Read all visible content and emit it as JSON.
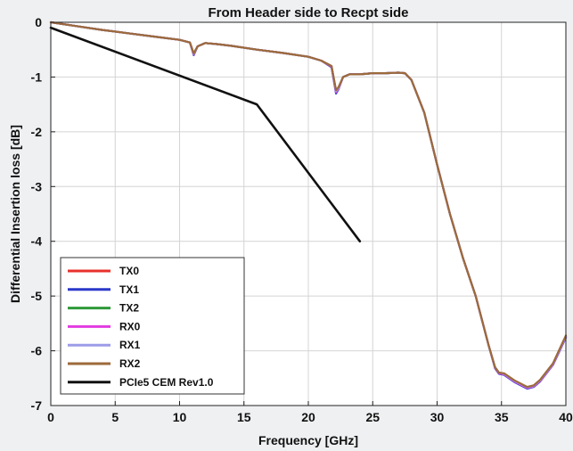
{
  "chart_data": {
    "type": "line",
    "title": "From Header side to Recpt side",
    "xlabel": "Frequency [GHz]",
    "ylabel": "Differential Insertion loss [dB]",
    "xlim": [
      0,
      40
    ],
    "ylim": [
      -7,
      0
    ],
    "xticks": [
      0,
      5,
      10,
      15,
      20,
      25,
      30,
      35,
      40
    ],
    "yticks": [
      0,
      -1,
      -2,
      -3,
      -4,
      -5,
      -6,
      -7
    ],
    "grid": true,
    "legend_position": "bottom-left",
    "series": [
      {
        "name": "TX0",
        "color": "#e8312b",
        "width": 2.2,
        "x": [
          0,
          2,
          4,
          6,
          8,
          10,
          10.8,
          11.1,
          11.4,
          12,
          13,
          14,
          16,
          18,
          20,
          21,
          21.8,
          22.15,
          22.35,
          22.7,
          23.2,
          24,
          25,
          26,
          27,
          27.5,
          28,
          29,
          30,
          31,
          32,
          33,
          34,
          34.5,
          34.8,
          35.2,
          36,
          37,
          37.5,
          38,
          39,
          40
        ],
        "y": [
          0,
          -0.07,
          -0.14,
          -0.2,
          -0.26,
          -0.32,
          -0.37,
          -0.58,
          -0.44,
          -0.38,
          -0.4,
          -0.43,
          -0.5,
          -0.56,
          -0.63,
          -0.7,
          -0.8,
          -1.27,
          -1.2,
          -1.0,
          -0.95,
          -0.95,
          -0.93,
          -0.93,
          -0.92,
          -0.93,
          -1.05,
          -1.65,
          -2.6,
          -3.5,
          -4.3,
          -5.0,
          -5.9,
          -6.3,
          -6.4,
          -6.42,
          -6.55,
          -6.68,
          -6.65,
          -6.55,
          -6.25,
          -5.75
        ]
      },
      {
        "name": "TX1",
        "color": "#2a39c9",
        "width": 2.2,
        "x": [
          0,
          2,
          4,
          6,
          8,
          10,
          10.8,
          11.1,
          11.4,
          12,
          13,
          14,
          16,
          18,
          20,
          21,
          21.8,
          22.15,
          22.35,
          22.7,
          23.2,
          24,
          25,
          26,
          27,
          27.5,
          28,
          29,
          30,
          31,
          32,
          33,
          34,
          34.5,
          34.8,
          35.2,
          36,
          37,
          37.5,
          38,
          39,
          40
        ],
        "y": [
          0,
          -0.07,
          -0.14,
          -0.2,
          -0.26,
          -0.32,
          -0.37,
          -0.6,
          -0.44,
          -0.38,
          -0.4,
          -0.43,
          -0.5,
          -0.56,
          -0.63,
          -0.7,
          -0.82,
          -1.3,
          -1.22,
          -1.0,
          -0.95,
          -0.95,
          -0.93,
          -0.93,
          -0.92,
          -0.93,
          -1.05,
          -1.65,
          -2.6,
          -3.5,
          -4.3,
          -5.0,
          -5.9,
          -6.32,
          -6.42,
          -6.44,
          -6.57,
          -6.69,
          -6.66,
          -6.56,
          -6.26,
          -5.76
        ]
      },
      {
        "name": "TX2",
        "color": "#2f9a3a",
        "width": 2.2,
        "x": [
          0,
          2,
          4,
          6,
          8,
          10,
          10.8,
          11.1,
          11.4,
          12,
          13,
          14,
          16,
          18,
          20,
          21,
          21.8,
          22.15,
          22.35,
          22.7,
          23.2,
          24,
          25,
          26,
          27,
          27.5,
          28,
          29,
          30,
          31,
          32,
          33,
          34,
          34.5,
          34.8,
          35.2,
          36,
          37,
          37.5,
          38,
          39,
          40
        ],
        "y": [
          0,
          -0.07,
          -0.14,
          -0.2,
          -0.26,
          -0.32,
          -0.37,
          -0.57,
          -0.44,
          -0.38,
          -0.4,
          -0.43,
          -0.5,
          -0.56,
          -0.63,
          -0.7,
          -0.8,
          -1.25,
          -1.19,
          -1.0,
          -0.95,
          -0.95,
          -0.93,
          -0.93,
          -0.92,
          -0.93,
          -1.05,
          -1.65,
          -2.6,
          -3.5,
          -4.3,
          -5.0,
          -5.9,
          -6.3,
          -6.4,
          -6.42,
          -6.55,
          -6.67,
          -6.64,
          -6.54,
          -6.24,
          -5.74
        ]
      },
      {
        "name": "RX0",
        "color": "#e23be0",
        "width": 2.2,
        "x": [
          0,
          2,
          4,
          6,
          8,
          10,
          10.8,
          11.1,
          11.4,
          12,
          13,
          14,
          16,
          18,
          20,
          21,
          21.8,
          22.15,
          22.35,
          22.7,
          23.2,
          24,
          25,
          26,
          27,
          27.5,
          28,
          29,
          30,
          31,
          32,
          33,
          34,
          34.5,
          34.8,
          35.2,
          36,
          37,
          37.5,
          38,
          39,
          40
        ],
        "y": [
          0,
          -0.07,
          -0.14,
          -0.2,
          -0.26,
          -0.32,
          -0.37,
          -0.59,
          -0.44,
          -0.38,
          -0.4,
          -0.43,
          -0.5,
          -0.56,
          -0.63,
          -0.7,
          -0.81,
          -1.28,
          -1.21,
          -1.0,
          -0.95,
          -0.95,
          -0.93,
          -0.93,
          -0.92,
          -0.93,
          -1.05,
          -1.65,
          -2.6,
          -3.5,
          -4.3,
          -5.0,
          -5.9,
          -6.31,
          -6.41,
          -6.43,
          -6.56,
          -6.68,
          -6.65,
          -6.55,
          -6.25,
          -5.75
        ]
      },
      {
        "name": "RX1",
        "color": "#9c9ce8",
        "width": 2.2,
        "x": [
          0,
          2,
          4,
          6,
          8,
          10,
          10.8,
          11.1,
          11.4,
          12,
          13,
          14,
          16,
          18,
          20,
          21,
          21.8,
          22.15,
          22.35,
          22.7,
          23.2,
          24,
          25,
          26,
          27,
          27.5,
          28,
          29,
          30,
          31,
          32,
          33,
          34,
          34.5,
          34.8,
          35.2,
          36,
          37,
          37.5,
          38,
          39,
          40
        ],
        "y": [
          0,
          -0.07,
          -0.14,
          -0.2,
          -0.26,
          -0.32,
          -0.37,
          -0.58,
          -0.44,
          -0.38,
          -0.4,
          -0.43,
          -0.5,
          -0.56,
          -0.63,
          -0.7,
          -0.8,
          -1.26,
          -1.2,
          -1.0,
          -0.95,
          -0.95,
          -0.93,
          -0.93,
          -0.92,
          -0.93,
          -1.05,
          -1.65,
          -2.6,
          -3.5,
          -4.3,
          -5.0,
          -5.9,
          -6.3,
          -6.4,
          -6.42,
          -6.55,
          -6.67,
          -6.64,
          -6.54,
          -6.24,
          -5.74
        ]
      },
      {
        "name": "RX2",
        "color": "#9c6a3a",
        "width": 2.2,
        "x": [
          0,
          2,
          4,
          6,
          8,
          10,
          10.8,
          11.1,
          11.4,
          12,
          13,
          14,
          16,
          18,
          20,
          21,
          21.8,
          22.15,
          22.35,
          22.7,
          23.2,
          24,
          25,
          26,
          27,
          27.5,
          28,
          29,
          30,
          31,
          32,
          33,
          34,
          34.5,
          34.8,
          35.2,
          36,
          37,
          37.5,
          38,
          39,
          40
        ],
        "y": [
          0,
          -0.07,
          -0.14,
          -0.2,
          -0.26,
          -0.32,
          -0.37,
          -0.57,
          -0.44,
          -0.38,
          -0.4,
          -0.43,
          -0.5,
          -0.56,
          -0.63,
          -0.7,
          -0.8,
          -1.24,
          -1.18,
          -1.0,
          -0.95,
          -0.95,
          -0.93,
          -0.93,
          -0.92,
          -0.93,
          -1.05,
          -1.65,
          -2.6,
          -3.5,
          -4.3,
          -5.0,
          -5.9,
          -6.3,
          -6.4,
          -6.41,
          -6.54,
          -6.66,
          -6.63,
          -6.53,
          -6.23,
          -5.72
        ]
      },
      {
        "name": "PCIe5 CEM Rev1.0",
        "color": "#111111",
        "width": 2.6,
        "x": [
          0,
          16,
          24
        ],
        "y": [
          -0.1,
          -1.5,
          -4.0
        ]
      }
    ]
  }
}
